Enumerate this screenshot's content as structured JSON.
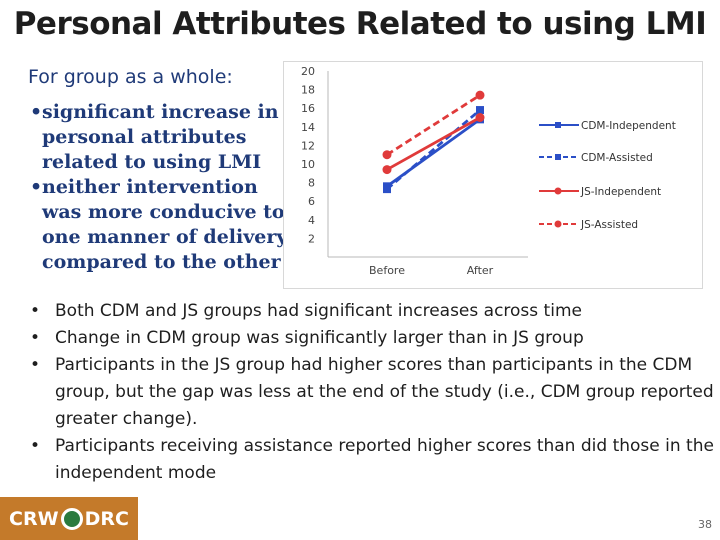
{
  "title": "Personal Attributes Related to using LMI",
  "subtitle": "For group as a whole:",
  "left_bullets": [
    "significant increase in personal attributes related to using LMI",
    "neither intervention was more conducive to one manner of delivery compared to the other"
  ],
  "bullets": [
    "Both CDM and JS groups had significant increases across time",
    "Change in CDM group was significantly larger than in JS group",
    "Participants in the JS group had higher scores than participants in the CDM group, but the gap was less at the end of the study (i.e., CDM group reported greater change).",
    "Participants receiving assistance reported higher scores than did those in the independent mode"
  ],
  "logo": {
    "left": "CRW",
    "right": "DRC"
  },
  "page_number": "38",
  "chart_data": {
    "type": "line",
    "categories": [
      "Before",
      "After"
    ],
    "ylim": [
      0,
      20
    ],
    "yticks": [
      2,
      4,
      6,
      8,
      10,
      12,
      14,
      16,
      18,
      20
    ],
    "series": [
      {
        "name": "CDM-Independent",
        "values": [
          7.6,
          14.8
        ],
        "color": "#2b4fc7",
        "dashed": false
      },
      {
        "name": "CDM-Assisted",
        "values": [
          7.3,
          15.8
        ],
        "color": "#2b4fc7",
        "dashed": true
      },
      {
        "name": "JS-Independent",
        "values": [
          9.4,
          15.0
        ],
        "color": "#e03a3a",
        "dashed": false
      },
      {
        "name": "JS-Assisted",
        "values": [
          11.0,
          17.4
        ],
        "color": "#e03a3a",
        "dashed": true
      }
    ]
  }
}
